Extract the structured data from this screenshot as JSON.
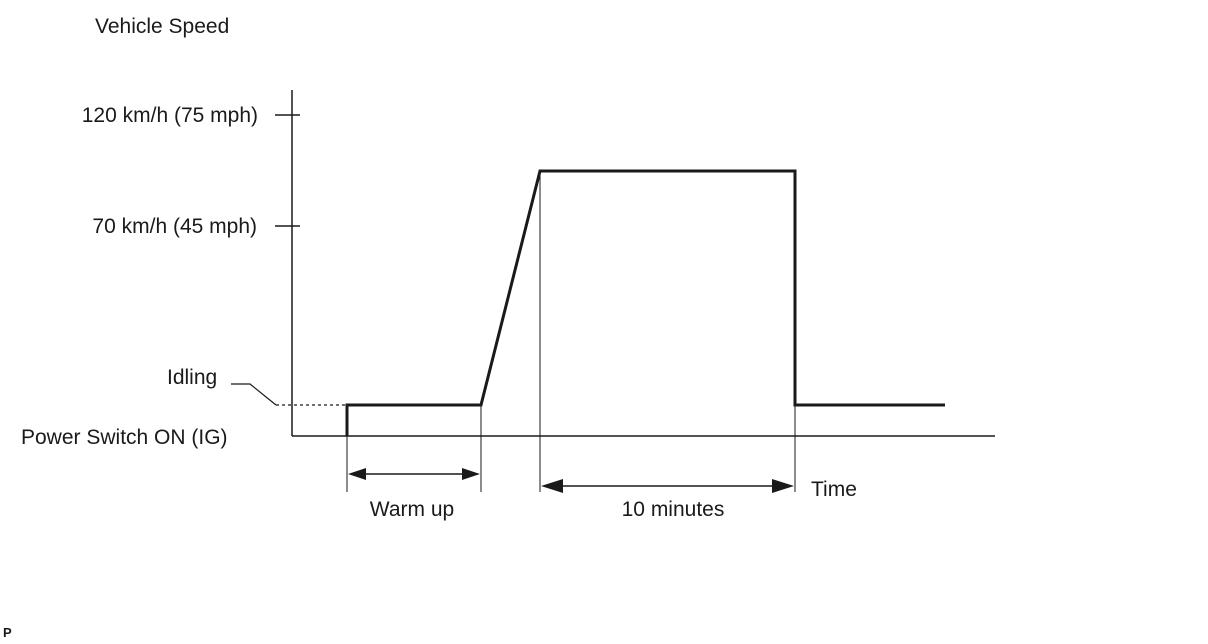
{
  "diagram": {
    "y_axis_title": "Vehicle Speed",
    "x_axis_title": "Time",
    "speed_levels": {
      "high": "120 km/h (75 mph)",
      "mid": "70 km/h (45 mph)",
      "idle": "Idling",
      "start": "Power Switch ON (IG)"
    },
    "phases": {
      "warm_up": "Warm up",
      "cruise_duration": "10 minutes"
    },
    "footer_mark": "P",
    "colors": {
      "line": "#1a1a1a",
      "background": "#ffffff"
    }
  }
}
